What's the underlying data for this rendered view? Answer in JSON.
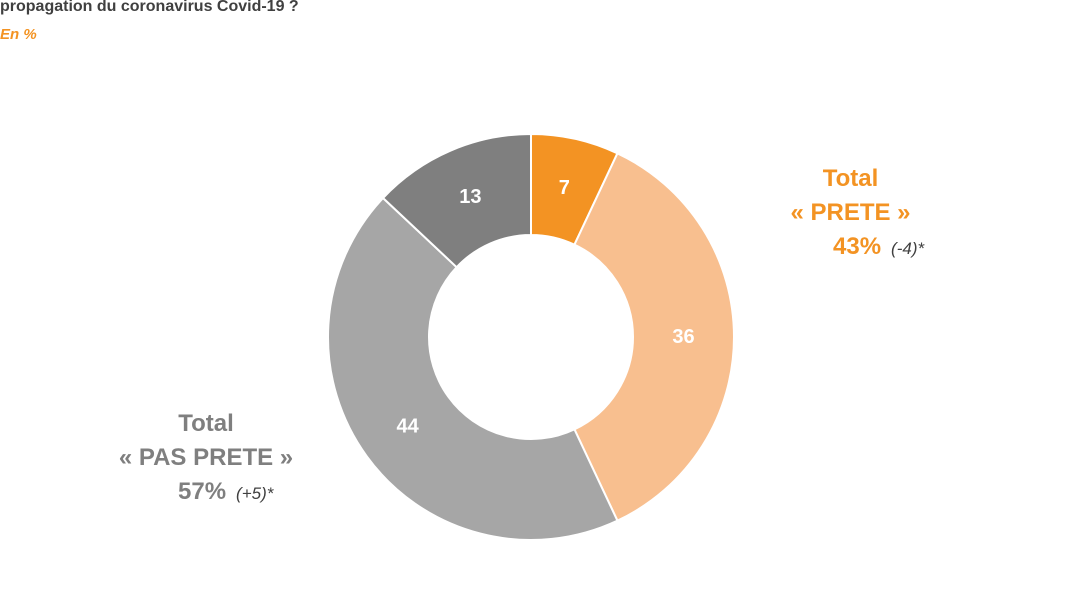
{
  "header": {
    "title": "propagation du coronavirus Covid-19 ?",
    "subtitle": "En %"
  },
  "totals": {
    "prete": {
      "line1": "Total",
      "line2": "« PRETE »",
      "percent": "43%",
      "delta": "(-4)*"
    },
    "pas_prete": {
      "line1": "Total",
      "line2": "« PAS PRETE »",
      "percent": "57%",
      "delta": "(+5)*"
    }
  },
  "colors": {
    "dark_orange": "#f39323",
    "light_orange": "#f8bf8f",
    "light_grey": "#a6a6a6",
    "dark_grey": "#7f7f7f",
    "title": "#404040"
  },
  "chart_data": {
    "type": "pie",
    "donut": true,
    "values": [
      7,
      36,
      44,
      13
    ],
    "labels": [
      "7",
      "36",
      "44",
      "13"
    ],
    "colors": [
      "#f39323",
      "#f8bf8f",
      "#a6a6a6",
      "#7f7f7f"
    ],
    "start": "top",
    "direction": "clockwise"
  }
}
